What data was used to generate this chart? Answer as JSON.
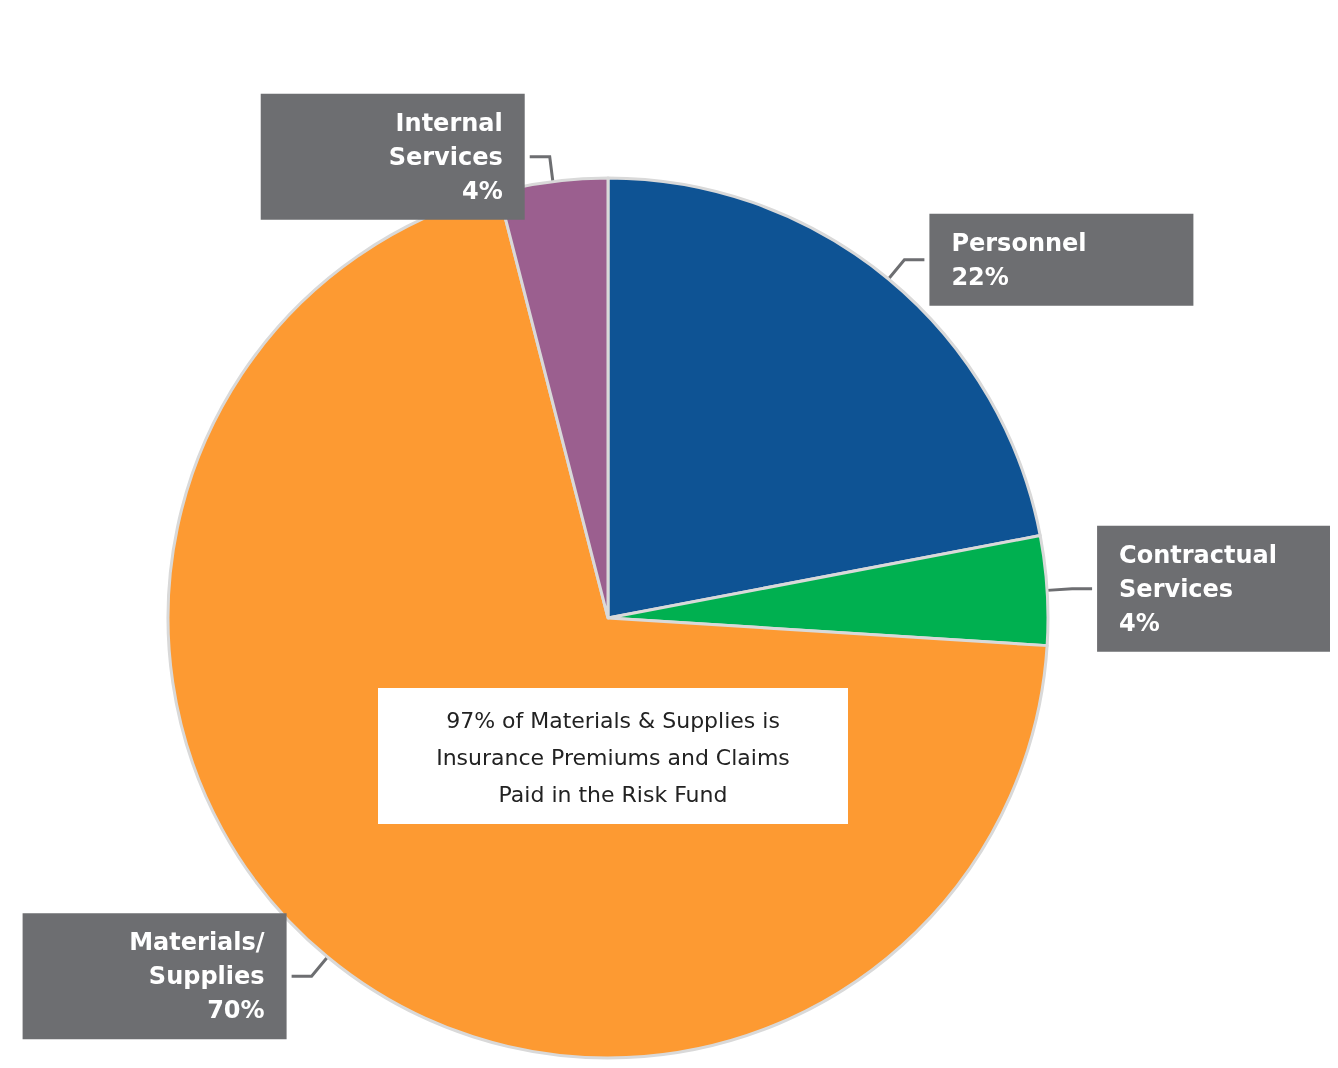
{
  "chart_data": {
    "type": "pie",
    "categories": [
      "Personnel",
      "Contractual Services",
      "Materials/ Supplies",
      "Internal Services"
    ],
    "values": [
      22,
      4,
      70,
      4
    ],
    "value_labels": [
      "22%",
      "4%",
      "70%",
      "4%"
    ],
    "colors": [
      "#0e5394",
      "#00b050",
      "#fd9a32",
      "#9b5f8f"
    ],
    "data_labels": true,
    "legend": false,
    "annotations": [
      "97% of Materials & Supplies is\nInsurance Premiums and Claims\nPaid in the Risk Fund"
    ]
  }
}
